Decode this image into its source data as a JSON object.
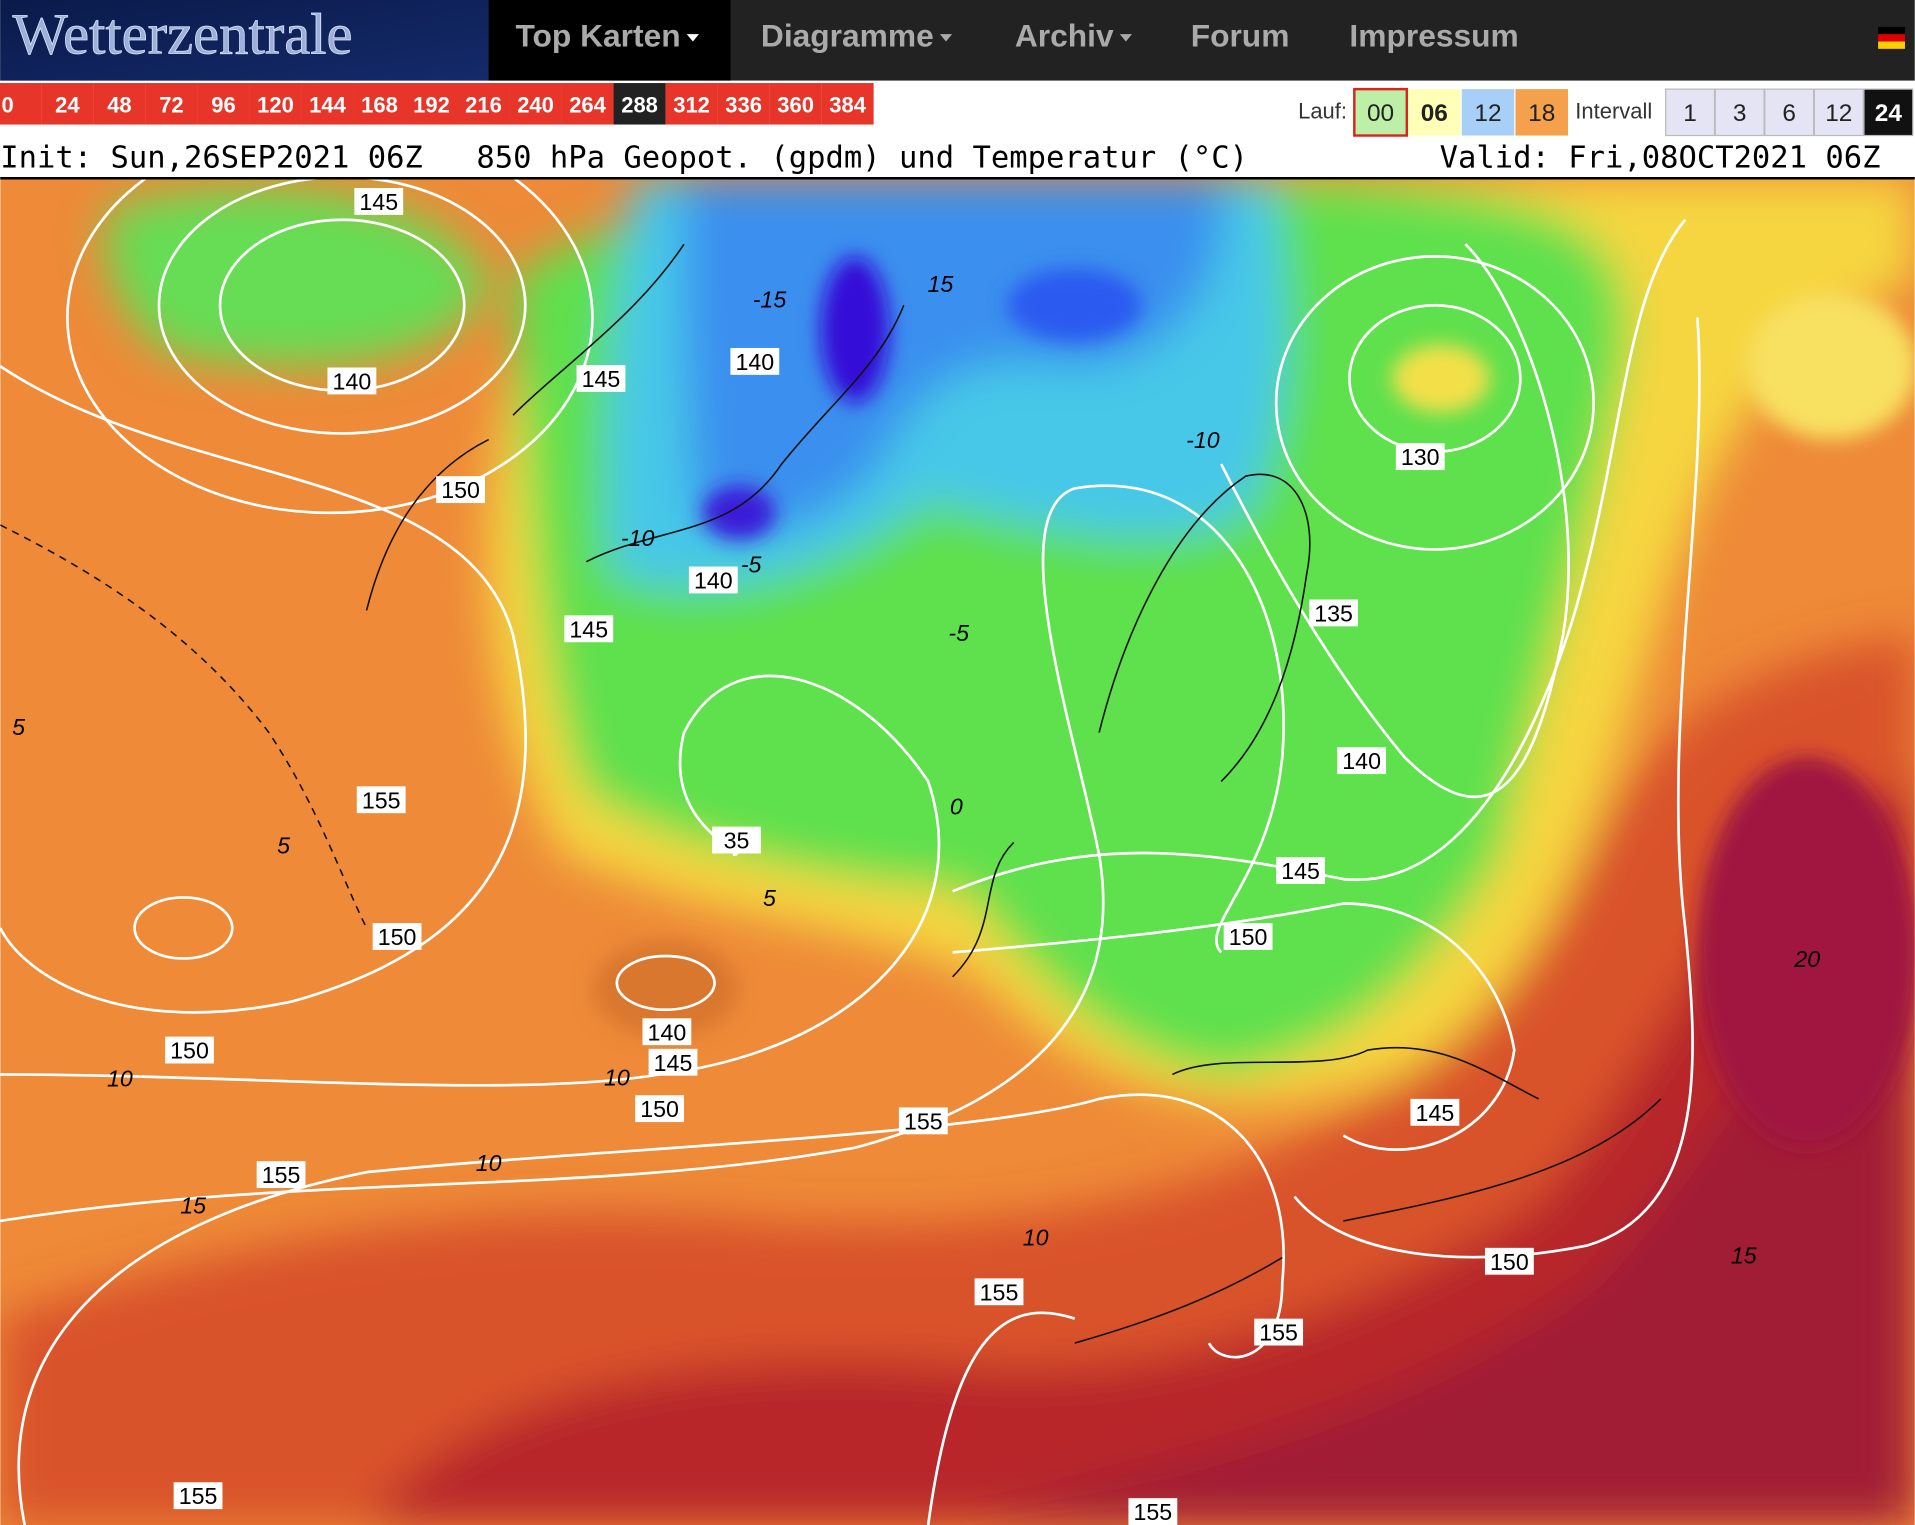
{
  "nav": {
    "logo": "Wetterzentrale",
    "items": [
      "Top Karten",
      "Diagramme",
      "Archiv",
      "Forum",
      "Impressum"
    ]
  },
  "hours": [
    "0",
    "24",
    "48",
    "72",
    "96",
    "120",
    "144",
    "168",
    "192",
    "216",
    "240",
    "264",
    "288",
    "312",
    "336",
    "360",
    "384"
  ],
  "run": {
    "label": "Lauf:",
    "options": [
      "00",
      "06",
      "12",
      "18"
    ]
  },
  "interval": {
    "label": "Intervall",
    "options": [
      "1",
      "3",
      "6",
      "12",
      "24"
    ]
  },
  "header": {
    "init": "Init: Sun,26SEP2021 06Z",
    "title": "850 hPa Geopot. (gpdm) und Temperatur (°C)",
    "valid": "Valid: Fri,08OCT2021 06Z"
  },
  "map": {
    "geopotential_labels": [
      "145",
      "140",
      "145",
      "140",
      "150",
      "140",
      "145",
      "155",
      "35",
      "150",
      "140",
      "145",
      "150",
      "150",
      "155",
      "155",
      "130",
      "135",
      "140",
      "145",
      "150",
      "145",
      "150",
      "155",
      "155",
      "155",
      "155"
    ],
    "temperature_labels": [
      "-15",
      "15",
      "-10",
      "-10",
      "-5",
      "-5",
      "0",
      "5",
      "5",
      "5",
      "10",
      "10",
      "10",
      "15",
      "10",
      "15",
      "20"
    ]
  }
}
